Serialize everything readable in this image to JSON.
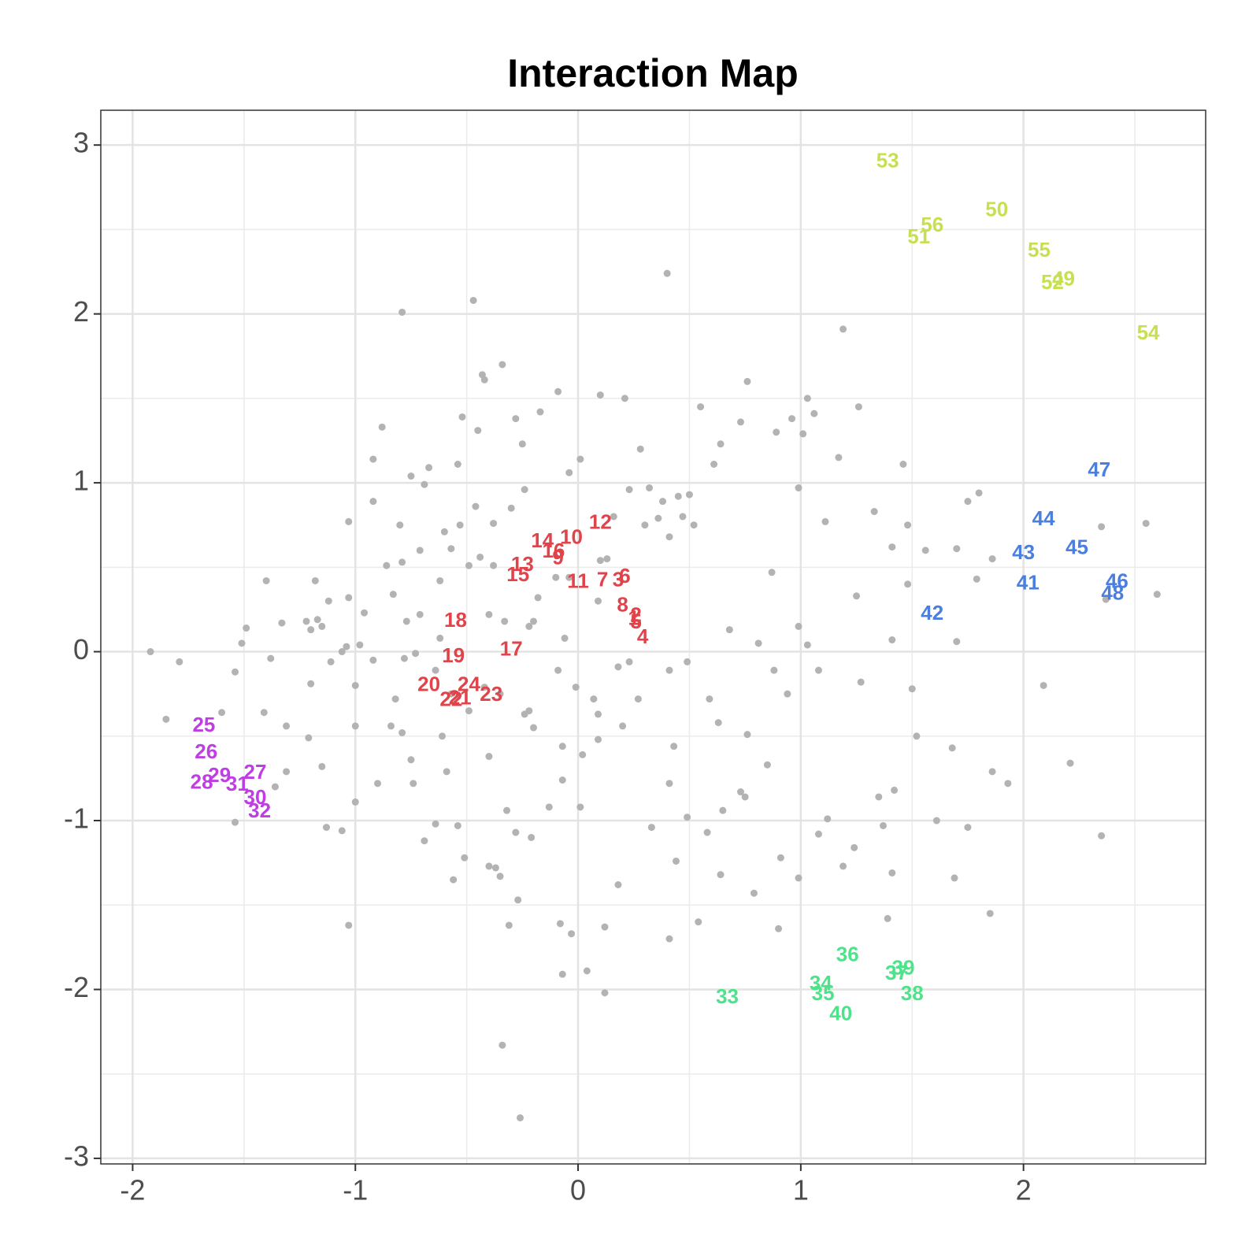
{
  "chart_data": {
    "type": "scatter",
    "title": "Interaction Map",
    "xlim": [
      -2.143,
      2.818
    ],
    "ylim": [
      -3.033,
      3.206
    ],
    "xticks": [
      -2,
      -1,
      0,
      1,
      2
    ],
    "yticks": [
      -3,
      -2,
      -1,
      0,
      1,
      2,
      3
    ],
    "xminor": [
      -1.5,
      -0.5,
      0.5,
      1.5,
      2.5
    ],
    "yminor": [
      -2.5,
      -1.5,
      -0.5,
      0.5,
      1.5,
      2.5
    ],
    "grid": true,
    "series": [
      {
        "color": "#b3b3b3",
        "x": [
          -1.92,
          -1.79,
          -1.85,
          -1.6,
          -1.54,
          -1.54,
          -1.49,
          -1.4,
          -1.51,
          -1.33,
          -1.38,
          -1.41,
          -1.36,
          -1.31,
          -1.31,
          -1.21,
          -1.18,
          -1.17,
          -1.22,
          -1.15,
          -1.2,
          -1.12,
          -1.15,
          -1.2,
          -1.13,
          -1.06,
          -1.03,
          -1.03,
          -1.03,
          -1,
          -1,
          -1,
          -0.98,
          -1.04,
          -1.06,
          -1.11,
          -0.92,
          -0.92,
          -0.88,
          -0.96,
          -0.92,
          -0.9,
          -0.83,
          -0.86,
          -0.79,
          -0.79,
          -0.8,
          -0.77,
          -0.82,
          -0.79,
          -0.75,
          -0.74,
          -0.75,
          -0.69,
          -0.67,
          -0.71,
          -0.71,
          -0.69,
          -0.64,
          -0.61,
          -0.6,
          -0.59,
          -0.54,
          -0.52,
          -0.54,
          -0.56,
          -0.51,
          -0.47,
          -0.46,
          -0.45,
          -0.43,
          -0.42,
          -0.34,
          -0.4,
          -0.38,
          -0.4,
          -0.37,
          -0.4,
          -0.35,
          -0.32,
          -0.34,
          -0.31,
          -0.28,
          -0.3,
          -0.25,
          -0.24,
          -0.26,
          -0.27,
          -0.28,
          -0.21,
          -0.22,
          -0.17,
          -0.13,
          -0.09,
          -0.08,
          -0.07,
          -0.04,
          -0.03,
          0.01,
          0.04,
          0.1,
          0.12,
          0.12,
          0.18,
          0.21,
          0.28,
          0.33,
          0.4,
          0.41,
          0.44,
          0.49,
          0.54,
          0.55,
          0.58,
          0.61,
          0.64,
          0.64,
          0.65,
          0.73,
          0.76,
          0.79,
          0.85,
          0.87,
          0.89,
          0.9,
          0.91,
          0.96,
          0.99,
          1.01,
          0.99,
          1.03,
          1.06,
          1.08,
          1.11,
          1.12,
          1.17,
          1.19,
          1.19,
          1.24,
          1.26,
          1.25,
          1.27,
          1.33,
          1.35,
          1.37,
          1.39,
          1.41,
          1.41,
          1.41,
          1.42,
          1.46,
          1.48,
          1.48,
          1.5,
          1.52,
          1.56,
          1.61,
          1.68,
          1.69,
          1.7,
          1.7,
          1.75,
          1.75,
          1.79,
          1.8,
          1.85,
          1.86,
          1.86,
          1.93,
          2.09,
          2.21,
          2.35,
          2.35,
          2.55,
          2.6,
          2.37,
          0.23,
          0.32,
          0.38,
          0.45,
          0.5,
          0.47,
          0.52,
          0.41,
          0.36,
          0.3,
          0.16,
          0.1,
          0.13,
          0.09,
          -0.04,
          -0.1,
          -0.18,
          -0.2,
          -0.06,
          -0.09,
          -0.01,
          0.07,
          0.09,
          0.02,
          -0.07,
          0.01,
          -0.07,
          0.18,
          0.23,
          0.41,
          0.49,
          0.59,
          0.68,
          0.81,
          0.88,
          0.94,
          0.99,
          1.08,
          1.03,
          0.73,
          0.75,
          0.76,
          0.63,
          0.41,
          0.43,
          0.27,
          0.2,
          0.09,
          -0.2,
          -0.24,
          -0.35,
          -0.42,
          -0.49,
          -0.57,
          -0.64,
          -0.62,
          -0.73,
          -0.78,
          -0.84,
          -0.62,
          -0.49,
          -0.38,
          -0.33,
          -0.22,
          -0.44,
          -0.53,
          -0.57
        ],
        "y": [
          0,
          -0.06,
          -0.4,
          -0.36,
          -1.01,
          -0.12,
          0.14,
          0.42,
          0.05,
          0.17,
          -0.04,
          -0.36,
          -0.8,
          -0.71,
          -0.44,
          -0.51,
          0.42,
          0.19,
          0.18,
          0.15,
          0.13,
          0.3,
          -0.68,
          -0.19,
          -1.04,
          -1.06,
          0.77,
          0.32,
          -1.62,
          -0.44,
          -0.2,
          -0.89,
          0.04,
          0.03,
          0,
          -0.06,
          1.14,
          0.89,
          1.33,
          0.23,
          -0.05,
          -0.78,
          0.34,
          0.51,
          2.01,
          0.53,
          0.75,
          0.18,
          -0.28,
          -0.48,
          -0.64,
          -0.78,
          1.04,
          0.99,
          1.09,
          0.6,
          0.22,
          -1.12,
          -1.02,
          -0.5,
          0.71,
          -0.71,
          1.11,
          1.39,
          -1.03,
          -1.35,
          -1.22,
          2.08,
          0.86,
          1.31,
          1.64,
          1.61,
          1.7,
          -0.62,
          0.76,
          0.22,
          -1.28,
          -1.27,
          -1.33,
          -0.94,
          -2.33,
          -1.62,
          1.38,
          0.85,
          1.23,
          0.96,
          -2.76,
          -1.47,
          -1.07,
          -1.1,
          -0.35,
          1.42,
          -0.92,
          1.54,
          -1.61,
          -1.91,
          1.06,
          -1.67,
          1.14,
          -1.89,
          1.52,
          -2.02,
          -1.63,
          -1.38,
          1.5,
          1.2,
          -1.04,
          2.24,
          -1.7,
          -1.24,
          -0.98,
          -1.6,
          1.45,
          -1.07,
          1.11,
          1.23,
          -1.32,
          -0.94,
          1.36,
          1.6,
          -1.43,
          -0.67,
          0.47,
          1.3,
          -1.64,
          -1.22,
          1.38,
          0.97,
          1.29,
          -1.34,
          1.5,
          1.41,
          -1.08,
          0.77,
          -0.99,
          1.15,
          1.91,
          -1.27,
          -1.16,
          1.45,
          0.33,
          -0.18,
          0.83,
          -0.86,
          -1.03,
          -1.58,
          -1.31,
          0.62,
          0.07,
          -0.82,
          1.11,
          0.75,
          0.4,
          -0.22,
          -0.5,
          0.6,
          -1,
          -0.57,
          -1.34,
          0.06,
          0.61,
          0.89,
          -1.04,
          0.43,
          0.94,
          -1.55,
          0.55,
          -0.71,
          -0.78,
          -0.2,
          -0.66,
          -1.09,
          0.74,
          0.76,
          0.34,
          0.31,
          0.96,
          0.97,
          0.89,
          0.92,
          0.93,
          0.8,
          0.75,
          0.68,
          0.79,
          0.75,
          0.8,
          0.54,
          0.55,
          0.3,
          0.44,
          0.44,
          0.32,
          0.18,
          0.08,
          -0.11,
          -0.21,
          -0.28,
          -0.37,
          -0.61,
          -0.76,
          -0.92,
          -0.56,
          -0.09,
          -0.06,
          -0.11,
          -0.06,
          -0.28,
          0.13,
          0.05,
          -0.11,
          -0.25,
          0.15,
          -0.11,
          0.04,
          -0.83,
          -0.86,
          -0.49,
          -0.42,
          -0.78,
          -0.56,
          -0.28,
          -0.44,
          -0.52,
          -0.45,
          -0.37,
          -0.25,
          -0.21,
          -0.35,
          -0.25,
          -0.11,
          0.08,
          -0.01,
          -0.04,
          -0.44,
          0.42,
          0.51,
          0.51,
          0.18,
          0.15,
          0.56,
          0.75,
          0.61
        ]
      },
      {
        "color": "#e0434a",
        "labels": [
          "1",
          "2",
          "3",
          "4",
          "5",
          "6",
          "7",
          "8",
          "9",
          "10",
          "11",
          "12",
          "13",
          "14",
          "15",
          "16",
          "17",
          "18",
          "19",
          "20",
          "21",
          "22",
          "23",
          "24"
        ],
        "x": [
          0.25,
          0.26,
          0.18,
          0.29,
          0.26,
          0.21,
          0.11,
          0.2,
          -0.09,
          -0.03,
          0,
          0.1,
          -0.25,
          -0.16,
          -0.27,
          -0.11,
          -0.3,
          -0.55,
          -0.56,
          -0.67,
          -0.53,
          -0.57,
          -0.39,
          -0.49
        ],
        "y": [
          0.2,
          0.22,
          0.43,
          0.09,
          0.18,
          0.45,
          0.43,
          0.28,
          0.56,
          0.68,
          0.42,
          0.77,
          0.52,
          0.66,
          0.46,
          0.6,
          0.02,
          0.19,
          -0.02,
          -0.19,
          -0.27,
          -0.28,
          -0.25,
          -0.19
        ]
      },
      {
        "color": "#bf3de3",
        "labels": [
          "25",
          "26",
          "27",
          "28",
          "29",
          "30",
          "31",
          "32"
        ],
        "x": [
          -1.68,
          -1.67,
          -1.45,
          -1.69,
          -1.61,
          -1.45,
          -1.53,
          -1.43
        ],
        "y": [
          -0.43,
          -0.59,
          -0.71,
          -0.77,
          -0.73,
          -0.86,
          -0.78,
          -0.94
        ]
      },
      {
        "color": "#4ee38a",
        "labels": [
          "33",
          "34",
          "35",
          "36",
          "37",
          "38",
          "39",
          "40"
        ],
        "x": [
          0.67,
          1.09,
          1.1,
          1.21,
          1.43,
          1.5,
          1.46,
          1.18
        ],
        "y": [
          -2.04,
          -1.96,
          -2.02,
          -1.79,
          -1.9,
          -2.02,
          -1.87,
          -2.14
        ]
      },
      {
        "color": "#4a7fdf",
        "labels": [
          "41",
          "42",
          "43",
          "44",
          "45",
          "46",
          "47",
          "48"
        ],
        "x": [
          2.02,
          1.59,
          2,
          2.09,
          2.24,
          2.42,
          2.34,
          2.4
        ],
        "y": [
          0.41,
          0.23,
          0.59,
          0.79,
          0.62,
          0.42,
          1.08,
          0.35
        ]
      },
      {
        "color": "#c6e04f",
        "labels": [
          "49",
          "50",
          "51",
          "52",
          "53",
          "54",
          "55",
          "56"
        ],
        "x": [
          2.18,
          1.88,
          1.53,
          2.13,
          1.39,
          2.56,
          2.07,
          1.59
        ],
        "y": [
          2.21,
          2.62,
          2.46,
          2.19,
          2.91,
          1.89,
          2.38,
          2.53
        ]
      }
    ]
  }
}
